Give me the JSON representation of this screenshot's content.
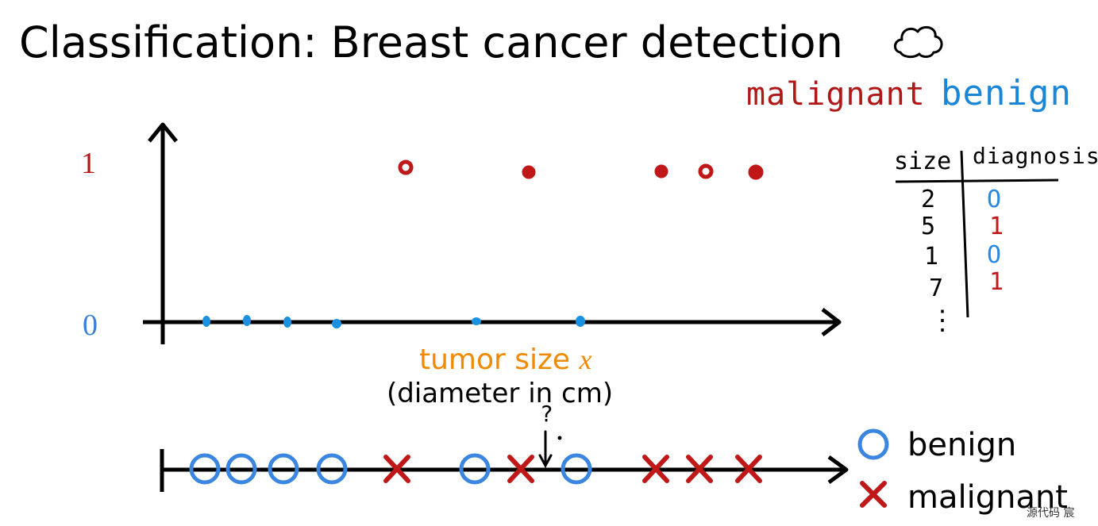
{
  "title": "Classification: Breast cancer detection",
  "handwritten": {
    "malignant": "malignant",
    "benign": "benign"
  },
  "plot": {
    "y_tick_1": "1",
    "y_tick_0": "0",
    "x_label": "tumor size",
    "x_var": "x",
    "x_sublabel": "(diameter in cm)",
    "benign_color": "#1a90e0",
    "malignant_color": "#c01818"
  },
  "table": {
    "header_size": "size",
    "header_diagnosis": "diagnosis",
    "rows": [
      {
        "size": "2",
        "diagnosis": "O"
      },
      {
        "size": "5",
        "diagnosis": "1"
      },
      {
        "size": "1",
        "diagnosis": "O"
      },
      {
        "size": "7",
        "diagnosis": "1"
      }
    ],
    "ellipsis": "⋮"
  },
  "number_line": {
    "question_mark": "?"
  },
  "legend": {
    "benign": "benign",
    "malignant": "malignant",
    "benign_color": "#3a86e0",
    "malignant_color": "#c01818"
  },
  "watermark": "源代码  宸"
}
